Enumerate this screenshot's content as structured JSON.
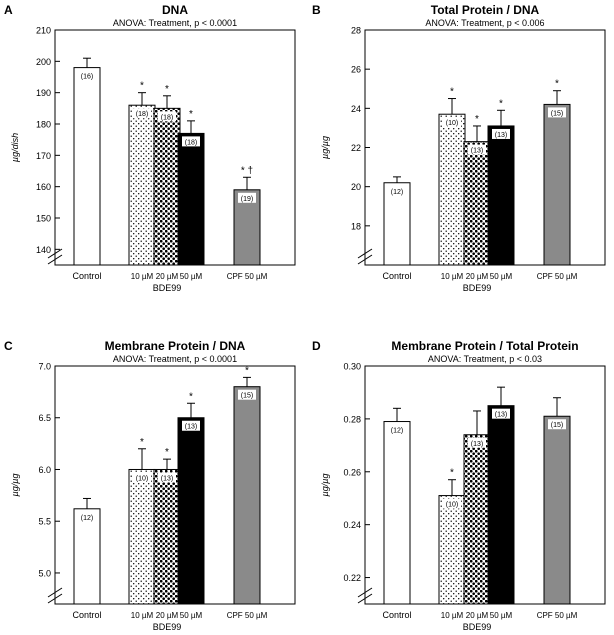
{
  "figure": {
    "panels": [
      "A",
      "B",
      "C",
      "D"
    ]
  },
  "chart_data": [
    {
      "id": "A",
      "type": "bar",
      "title": "DNA",
      "subtitle": "ANOVA: Treatment, p < 0.0001",
      "ylabel": "µg/dish",
      "ylim": [
        135,
        210
      ],
      "yticks": [
        140,
        150,
        160,
        170,
        180,
        190,
        200,
        210
      ],
      "categories": [
        "Control",
        "10 µM",
        "20 µM",
        "50 µM",
        "CPF 50 µM"
      ],
      "group_label": "BDE99",
      "values": [
        198,
        186,
        185,
        177,
        159
      ],
      "errors": [
        3,
        4,
        4,
        4,
        4
      ],
      "n_labels": [
        "(16)",
        "(18)",
        "(18)",
        "(18)",
        "(19)"
      ],
      "sig_marks": [
        "",
        "*",
        "*",
        "*",
        "* †"
      ],
      "patterns": [
        "white",
        "light-dots",
        "dense-dots",
        "black",
        "gray"
      ]
    },
    {
      "id": "B",
      "type": "bar",
      "title": "Total Protein / DNA",
      "subtitle": "ANOVA: Treatment, p < 0.006",
      "ylabel": "µg/µg",
      "ylim": [
        16,
        28
      ],
      "yticks": [
        18,
        20,
        22,
        24,
        26,
        28
      ],
      "categories": [
        "Control",
        "10 µM",
        "20 µM",
        "50 µM",
        "CPF 50 µM"
      ],
      "group_label": "BDE99",
      "values": [
        20.2,
        23.7,
        22.3,
        23.1,
        24.2
      ],
      "errors": [
        0.3,
        0.8,
        0.8,
        0.8,
        0.7
      ],
      "n_labels": [
        "(12)",
        "(10)",
        "(13)",
        "(13)",
        "(15)"
      ],
      "sig_marks": [
        "",
        "*",
        "*",
        "*",
        "*"
      ],
      "patterns": [
        "white",
        "light-dots",
        "dense-dots",
        "black",
        "gray"
      ]
    },
    {
      "id": "C",
      "type": "bar",
      "title": "Membrane Protein / DNA",
      "subtitle": "ANOVA: Treatment, p < 0.0001",
      "ylabel": "µg/µg",
      "ylim": [
        4.7,
        7.0
      ],
      "yticks": [
        5.0,
        5.5,
        6.0,
        6.5,
        7.0
      ],
      "categories": [
        "Control",
        "10 µM",
        "20 µM",
        "50 µM",
        "CPF 50 µM"
      ],
      "group_label": "BDE99",
      "values": [
        5.62,
        6.0,
        6.0,
        6.5,
        6.8
      ],
      "errors": [
        0.1,
        0.2,
        0.1,
        0.14,
        0.09
      ],
      "n_labels": [
        "(12)",
        "(10)",
        "(13)",
        "(13)",
        "(15)"
      ],
      "sig_marks": [
        "",
        "*",
        "*",
        "*",
        "*"
      ],
      "patterns": [
        "white",
        "light-dots",
        "dense-dots",
        "black",
        "gray"
      ]
    },
    {
      "id": "D",
      "type": "bar",
      "title": "Membrane Protein / Total Protein",
      "subtitle": "ANOVA: Treatment, p < 0.03",
      "ylabel": "µg/µg",
      "ylim": [
        0.21,
        0.3
      ],
      "yticks": [
        0.22,
        0.24,
        0.26,
        0.28,
        0.3
      ],
      "categories": [
        "Control",
        "10 µM",
        "20 µM",
        "50 µM",
        "CPF 50 µM"
      ],
      "group_label": "BDE99",
      "values": [
        0.279,
        0.251,
        0.274,
        0.285,
        0.281
      ],
      "errors": [
        0.005,
        0.006,
        0.009,
        0.007,
        0.007
      ],
      "n_labels": [
        "(12)",
        "(10)",
        "(13)",
        "(13)",
        "(15)"
      ],
      "sig_marks": [
        "",
        "*",
        "",
        "",
        ""
      ],
      "patterns": [
        "white",
        "light-dots",
        "dense-dots",
        "black",
        "gray"
      ]
    }
  ]
}
